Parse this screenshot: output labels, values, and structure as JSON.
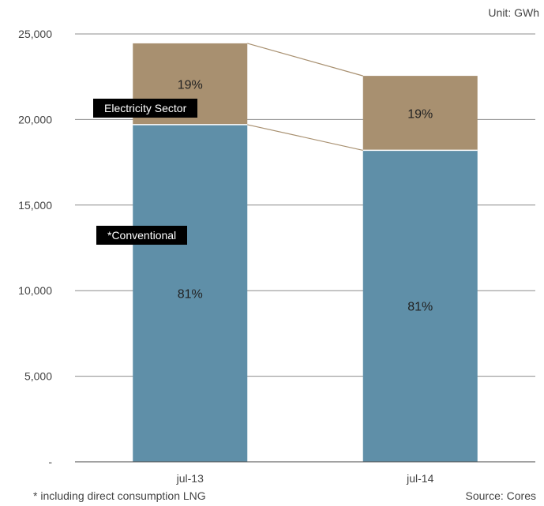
{
  "unit_label": "Unit: GWh",
  "footnote": "* including direct consumption LNG",
  "source": "Source: Cores",
  "annotations": {
    "electricity": "Electricity Sector",
    "conventional": "*Conventional"
  },
  "colors": {
    "conventional": "#5f8fa8",
    "electricity": "#a89070",
    "grid": "#8c8c8c",
    "connector": "#a89070"
  },
  "chart_data": {
    "type": "bar",
    "stacked": true,
    "categories": [
      "jul-13",
      "jul-14"
    ],
    "series": [
      {
        "values": [
          19700,
          18200
        ],
        "labels": [
          "81%",
          "81%"
        ]
      },
      {
        "values": [
          4750,
          4350
        ],
        "labels": [
          "19%",
          "19%"
        ]
      }
    ],
    "ylim": [
      0,
      25000
    ],
    "yticks": [
      0,
      5000,
      10000,
      15000,
      20000,
      25000
    ],
    "ytick_labels": [
      "-",
      "5,000",
      "10,000",
      "15,000",
      "20,000",
      "25,000"
    ],
    "grid": true
  }
}
